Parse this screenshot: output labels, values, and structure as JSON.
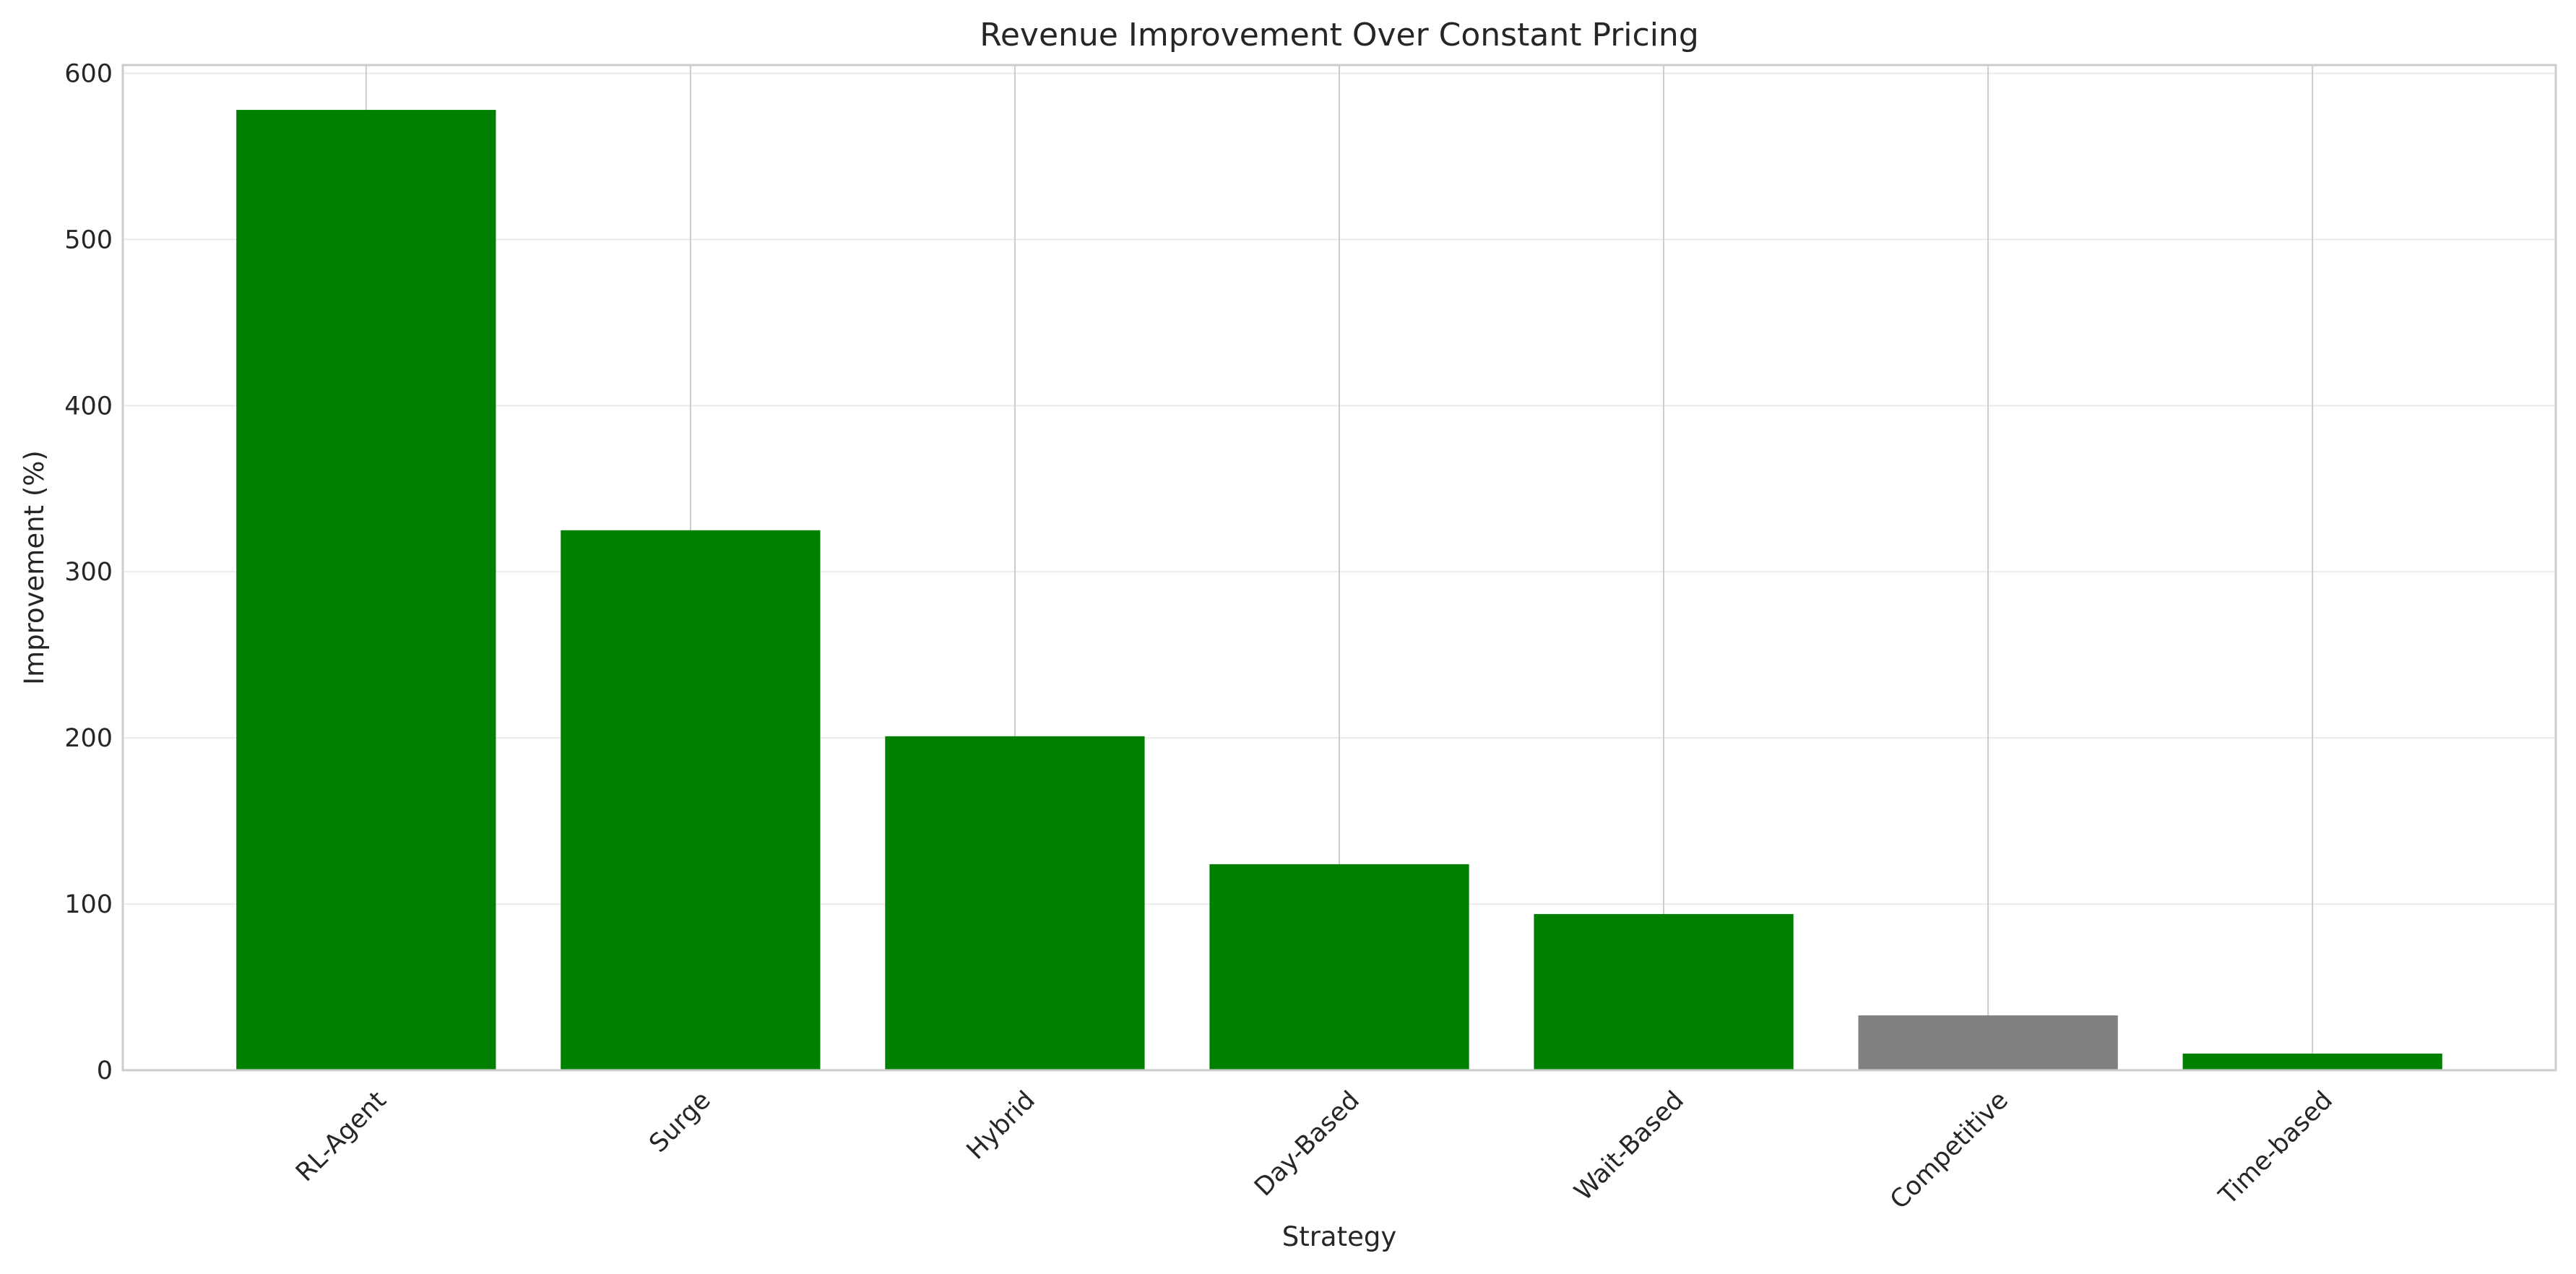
{
  "chart_data": {
    "type": "bar",
    "title": "Revenue Improvement Over Constant Pricing",
    "xlabel": "Strategy",
    "ylabel": "Improvement (%)",
    "categories": [
      "RL-Agent",
      "Surge",
      "Hybrid",
      "Day-Based",
      "Wait-Based",
      "Competitive",
      "Time-based"
    ],
    "values": [
      578,
      325,
      201,
      124,
      94,
      33,
      10
    ],
    "bar_colors": [
      "#008000",
      "#008000",
      "#008000",
      "#008000",
      "#008000",
      "#808080",
      "#008000"
    ],
    "ylim": [
      0,
      605
    ],
    "yticks": [
      0,
      100,
      200,
      300,
      400,
      500,
      600
    ],
    "grid": true,
    "x_tick_rotation": 45,
    "colors": {
      "grid": "#ebebeb",
      "vertical_grid": "#cccccc",
      "frame": "#cccccc",
      "text": "#262626"
    }
  }
}
